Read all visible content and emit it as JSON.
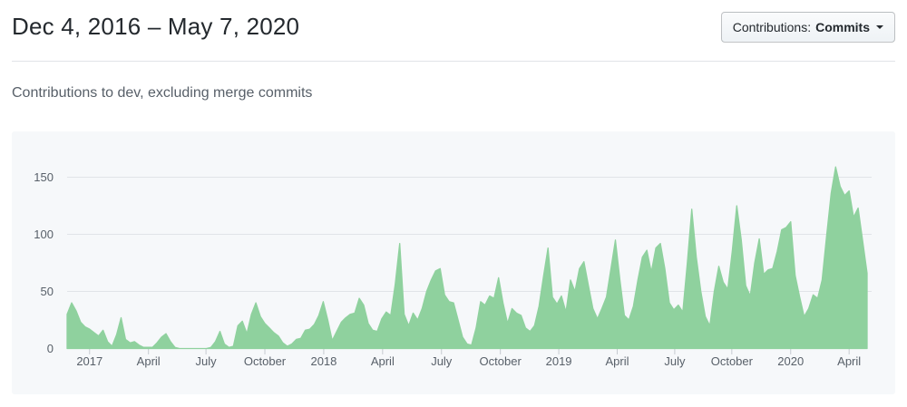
{
  "header": {
    "title": "Dec 4, 2016 – May 7, 2020",
    "contributions_button": {
      "label_prefix": "Contributions:",
      "selected": "Commits",
      "icon": "caret-down-icon"
    }
  },
  "subtitle": "Contributions to dev, excluding merge commits",
  "colors": {
    "area_fill": "#8fd19e",
    "panel_bg": "#f6f8fa",
    "grid_line": "#e1e4e8",
    "axis_text": "#586069",
    "tick_mark": "#c6cbd1",
    "title_text": "#24292e",
    "subtitle_text": "#586069",
    "divider": "#e1e4e8"
  },
  "chart_data": {
    "type": "area",
    "title": "",
    "description": "Weekly commits to dev, excluding merge commits",
    "x_unit": "week",
    "x_start_label": "Dec 4, 2016",
    "x_end_label": "May 7, 2020",
    "ylim": [
      0,
      190
    ],
    "grid": true,
    "legend": "none",
    "y_ticks": [
      0,
      50,
      100,
      150
    ],
    "x_ticks": [
      {
        "label": "2017",
        "week": 5.0
      },
      {
        "label": "April",
        "week": 18.1
      },
      {
        "label": "July",
        "week": 30.9
      },
      {
        "label": "October",
        "week": 44.0
      },
      {
        "label": "2018",
        "week": 57.1
      },
      {
        "label": "April",
        "week": 70.2
      },
      {
        "label": "July",
        "week": 83.3
      },
      {
        "label": "October",
        "week": 96.4
      },
      {
        "label": "2019",
        "week": 109.4
      },
      {
        "label": "April",
        "week": 122.4
      },
      {
        "label": "July",
        "week": 135.2
      },
      {
        "label": "October",
        "week": 147.9
      },
      {
        "label": "2020",
        "week": 161.0
      },
      {
        "label": "April",
        "week": 174.0
      }
    ],
    "values": [
      30,
      40,
      33,
      23,
      19,
      17,
      14,
      11,
      16,
      6,
      2,
      12,
      27,
      8,
      5,
      6,
      3,
      1,
      1,
      1,
      5,
      10,
      13,
      6,
      1,
      0,
      0,
      0,
      0,
      0,
      0,
      0,
      1,
      6,
      15,
      4,
      1,
      2,
      20,
      24,
      13,
      30,
      40,
      28,
      22,
      18,
      14,
      11,
      5,
      2,
      4,
      8,
      9,
      16,
      17,
      21,
      29,
      41,
      25,
      7,
      15,
      23,
      27,
      30,
      31,
      44,
      38,
      22,
      16,
      15,
      26,
      32,
      29,
      56,
      92,
      30,
      20,
      31,
      25,
      35,
      50,
      60,
      68,
      70,
      47,
      41,
      40,
      25,
      10,
      4,
      3,
      18,
      41,
      38,
      46,
      44,
      62,
      40,
      22,
      35,
      31,
      29,
      18,
      15,
      20,
      37,
      63,
      88,
      45,
      39,
      46,
      32,
      60,
      50,
      70,
      76,
      55,
      35,
      26,
      35,
      45,
      70,
      95,
      60,
      29,
      25,
      37,
      60,
      80,
      86,
      67,
      88,
      92,
      70,
      40,
      34,
      38,
      32,
      75,
      122,
      80,
      50,
      28,
      20,
      50,
      72,
      58,
      52,
      85,
      125,
      95,
      55,
      46,
      75,
      96,
      65,
      69,
      70,
      85,
      104,
      106,
      111,
      64,
      45,
      28,
      35,
      47,
      44,
      60,
      99,
      136,
      159,
      142,
      134,
      138,
      115,
      123,
      95,
      66
    ]
  }
}
